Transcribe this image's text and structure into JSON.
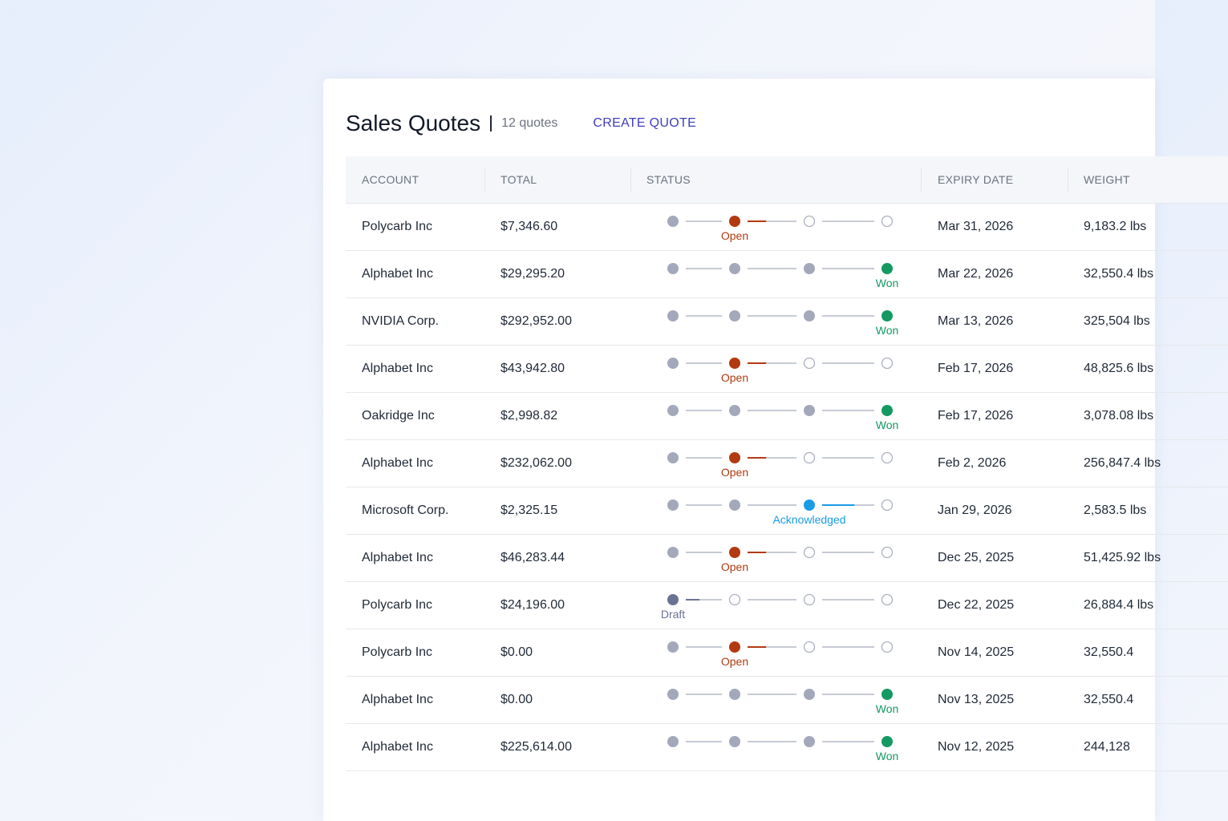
{
  "header": {
    "title": "Sales Quotes",
    "count": "12 quotes",
    "create_label": "CREATE QUOTE"
  },
  "columns": {
    "account": "ACCOUNT",
    "total": "TOTAL",
    "status": "STATUS",
    "expiry": "EXPIRY DATE",
    "weight": "WEIGHT"
  },
  "status_colors": {
    "Draft": "#6b7394",
    "Open": "#b23a10",
    "Acknowledged": "#1a9be6",
    "Won": "#139a62",
    "complete": "#a3a9ba",
    "pending": "#c7cbd4"
  },
  "rows": [
    {
      "account": "Polycarb Inc",
      "total": "$7,346.60",
      "status": "Open",
      "stage": 1,
      "expiry": "Mar 31, 2026",
      "weight": "9,183.2 lbs"
    },
    {
      "account": "Alphabet Inc",
      "total": "$29,295.20",
      "status": "Won",
      "stage": 3,
      "expiry": "Mar 22, 2026",
      "weight": "32,550.4 lbs"
    },
    {
      "account": "NVIDIA Corp.",
      "total": "$292,952.00",
      "status": "Won",
      "stage": 3,
      "expiry": "Mar 13, 2026",
      "weight": "325,504 lbs"
    },
    {
      "account": "Alphabet Inc",
      "total": "$43,942.80",
      "status": "Open",
      "stage": 1,
      "expiry": "Feb 17, 2026",
      "weight": "48,825.6 lbs"
    },
    {
      "account": "Oakridge Inc",
      "total": "$2,998.82",
      "status": "Won",
      "stage": 3,
      "expiry": "Feb 17, 2026",
      "weight": "3,078.08 lbs"
    },
    {
      "account": "Alphabet Inc",
      "total": "$232,062.00",
      "status": "Open",
      "stage": 1,
      "expiry": "Feb 2, 2026",
      "weight": "256,847.4 lbs"
    },
    {
      "account": "Microsoft Corp.",
      "total": "$2,325.15",
      "status": "Acknowledged",
      "stage": 2,
      "expiry": "Jan 29, 2026",
      "weight": "2,583.5 lbs"
    },
    {
      "account": "Alphabet Inc",
      "total": "$46,283.44",
      "status": "Open",
      "stage": 1,
      "expiry": "Dec 25, 2025",
      "weight": "51,425.92 lbs"
    },
    {
      "account": "Polycarb Inc",
      "total": "$24,196.00",
      "status": "Draft",
      "stage": 0,
      "expiry": "Dec 22, 2025",
      "weight": "26,884.4 lbs"
    },
    {
      "account": "Polycarb Inc",
      "total": "$0.00",
      "status": "Open",
      "stage": 1,
      "expiry": "Nov 14, 2025",
      "weight": "32,550.4"
    },
    {
      "account": "Alphabet Inc",
      "total": "$0.00",
      "status": "Won",
      "stage": 3,
      "expiry": "Nov 13, 2025",
      "weight": "32,550.4"
    },
    {
      "account": "Alphabet Inc",
      "total": "$225,614.00",
      "status": "Won",
      "stage": 3,
      "expiry": "Nov 12, 2025",
      "weight": "244,128"
    }
  ]
}
